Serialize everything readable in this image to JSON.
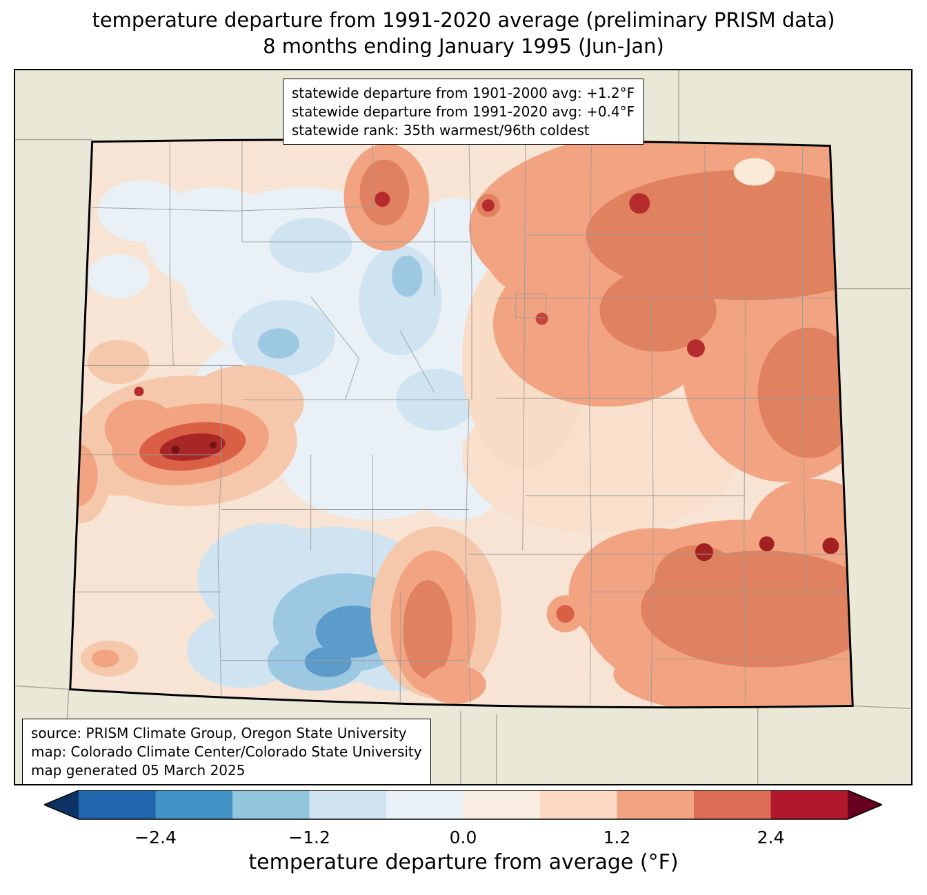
{
  "title": {
    "line1": "temperature departure from 1991-2020 average (preliminary PRISM data)",
    "line2": "8 months ending January 1995 (Jun-Jan)"
  },
  "stats_box": {
    "lines": [
      "statewide departure from 1901-2000 avg: +1.2°F",
      "statewide departure from 1991-2020 avg: +0.4°F",
      "statewide rank: 35th warmest/96th coldest"
    ]
  },
  "source_box": {
    "lines": [
      "source: PRISM Climate Group, Oregon State University",
      "map: Colorado Climate Center/Colorado State University",
      "map generated 05 March 2025"
    ]
  },
  "map": {
    "region": "Colorado",
    "background_color": "#eae9d8",
    "county_line_color": "#9b9b9b",
    "state_border_color": "#000000"
  },
  "colorbar": {
    "label": "temperature departure from average (°F)",
    "min": -3.0,
    "max": 3.0,
    "under_color": "#0a3364",
    "over_color": "#67001f",
    "segment_colors": [
      "#2166ac",
      "#4292c6",
      "#92c5de",
      "#cfe3f1",
      "#e9f0f6",
      "#faeee3",
      "#fbd9c3",
      "#f2a482",
      "#dd6e55",
      "#b2182b"
    ],
    "ticks": [
      {
        "label": "−2.4",
        "value": -2.4
      },
      {
        "label": "−1.2",
        "value": -1.2
      },
      {
        "label": "0.0",
        "value": 0.0
      },
      {
        "label": "1.2",
        "value": 1.2
      },
      {
        "label": "2.4",
        "value": 2.4
      }
    ]
  }
}
